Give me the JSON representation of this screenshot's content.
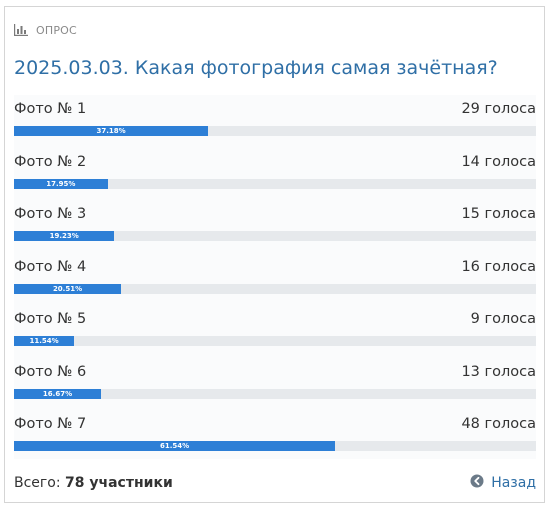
{
  "poll": {
    "label": "ОПРОС",
    "question": "2025.03.03. Какая фотография самая зачётная?",
    "options": [
      {
        "label": "Фото № 1",
        "votes": "29 голоса",
        "percent_text": "37.18%",
        "percent": 37.18
      },
      {
        "label": "Фото № 2",
        "votes": "14 голоса",
        "percent_text": "17.95%",
        "percent": 17.95
      },
      {
        "label": "Фото № 3",
        "votes": "15 голоса",
        "percent_text": "19.23%",
        "percent": 19.23
      },
      {
        "label": "Фото № 4",
        "votes": "16 голоса",
        "percent_text": "20.51%",
        "percent": 20.51
      },
      {
        "label": "Фото № 5",
        "votes": "9 голоса",
        "percent_text": "11.54%",
        "percent": 11.54
      },
      {
        "label": "Фото № 6",
        "votes": "13 голоса",
        "percent_text": "16.67%",
        "percent": 16.67
      },
      {
        "label": "Фото № 7",
        "votes": "48 голоса",
        "percent_text": "61.54%",
        "percent": 61.54
      }
    ],
    "footer": {
      "total_label": "Всего:",
      "total_value": "78 участники",
      "back_label": "Назад"
    }
  },
  "colors": {
    "accent": "#2d7fd6",
    "link": "#2f6fa6",
    "track": "#e6e9ec"
  },
  "icons": {
    "header": "bar-chart-icon",
    "back": "arrow-circle-left-icon"
  }
}
